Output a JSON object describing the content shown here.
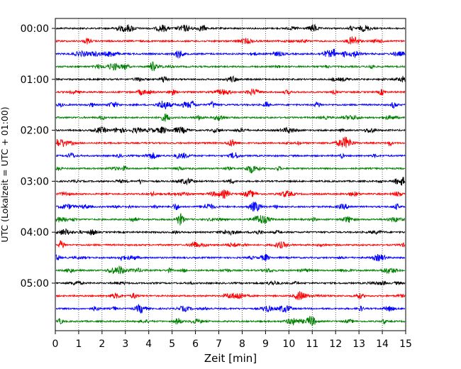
{
  "chart_data": {
    "type": "line",
    "title": "",
    "xlabel": "Zeit  [min]",
    "ylabel": "UTC (Lokalzeit = UTC + 01:00)",
    "xlim": [
      0,
      15
    ],
    "xticks": [
      "0",
      "1",
      "2",
      "3",
      "4",
      "5",
      "6",
      "7",
      "8",
      "9",
      "10",
      "11",
      "12",
      "13",
      "14",
      "15"
    ],
    "yticks": [
      "00:00",
      "01:00",
      "02:00",
      "03:00",
      "04:00",
      "05:00"
    ],
    "grid": "vertical dotted lines at each minute",
    "trace_minutes": 15,
    "trace_count": 24,
    "trace_colors": [
      "#000000",
      "#ff0000",
      "#0000ff",
      "#008000"
    ],
    "traces": [
      {
        "start": "00:00"
      },
      {
        "start": "00:15"
      },
      {
        "start": "00:30"
      },
      {
        "start": "00:45"
      },
      {
        "start": "01:00"
      },
      {
        "start": "01:15"
      },
      {
        "start": "01:30"
      },
      {
        "start": "01:45"
      },
      {
        "start": "02:00"
      },
      {
        "start": "02:15"
      },
      {
        "start": "02:30"
      },
      {
        "start": "02:45"
      },
      {
        "start": "03:00"
      },
      {
        "start": "03:15"
      },
      {
        "start": "03:30"
      },
      {
        "start": "03:45"
      },
      {
        "start": "04:00"
      },
      {
        "start": "04:15"
      },
      {
        "start": "04:30"
      },
      {
        "start": "04:45"
      },
      {
        "start": "05:00"
      },
      {
        "start": "05:15"
      },
      {
        "start": "05:30"
      },
      {
        "start": "05:45"
      }
    ]
  }
}
